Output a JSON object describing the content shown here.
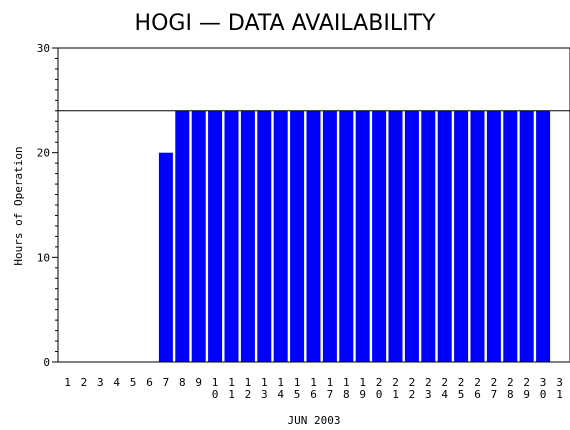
{
  "chart_data": {
    "type": "bar",
    "title": "HOGI — DATA AVAILABILITY",
    "xlabel": "JUN 2003",
    "ylabel": "Hours of Operation",
    "ylim": [
      0,
      30
    ],
    "yticks": [
      0,
      10,
      20,
      30
    ],
    "reference_line": 24,
    "bar_color": "#0000ff",
    "categories": [
      "1",
      "2",
      "3",
      "4",
      "5",
      "6",
      "7",
      "8",
      "9",
      "10",
      "11",
      "12",
      "13",
      "14",
      "15",
      "16",
      "17",
      "18",
      "19",
      "20",
      "21",
      "22",
      "23",
      "24",
      "25",
      "26",
      "27",
      "28",
      "29",
      "30",
      "31"
    ],
    "values": [
      0,
      0,
      0,
      0,
      0,
      0,
      20,
      24,
      24,
      24,
      24,
      24,
      24,
      24,
      24,
      24,
      24,
      24,
      24,
      24,
      24,
      24,
      24,
      24,
      24,
      24,
      24,
      24,
      24,
      24,
      null
    ]
  }
}
